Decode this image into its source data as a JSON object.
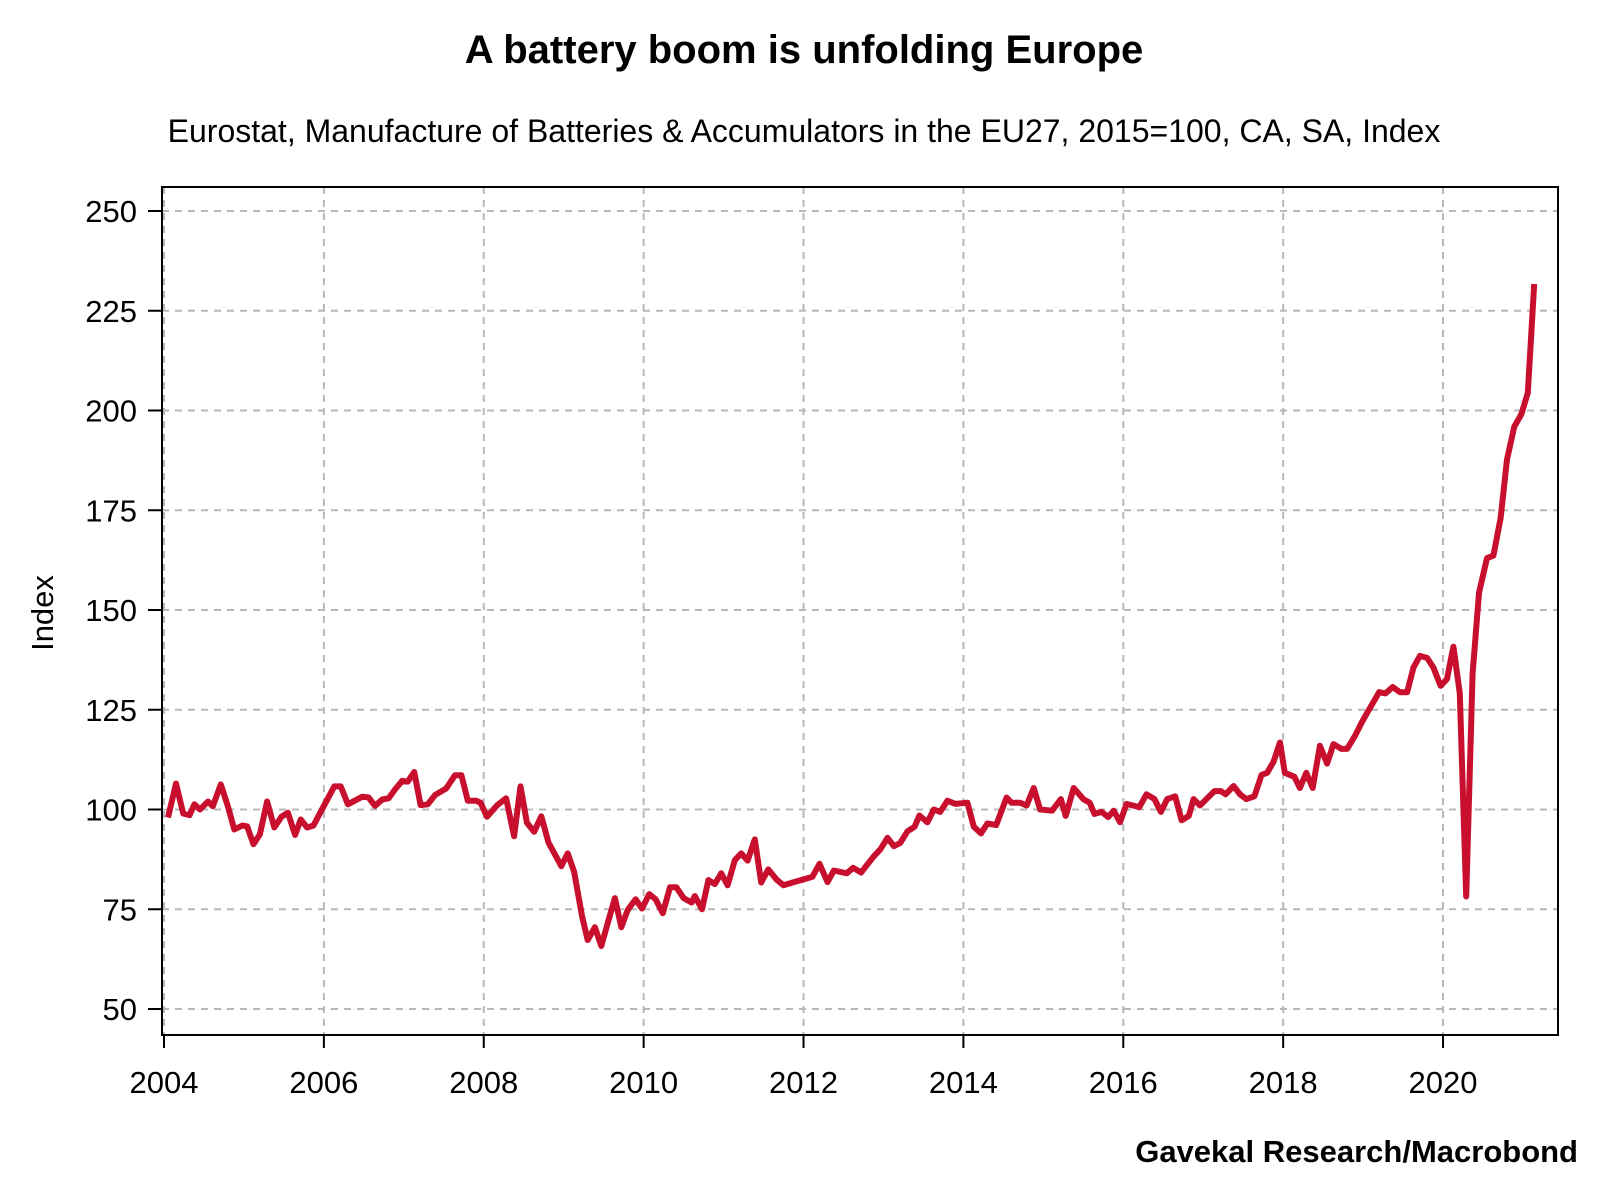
{
  "chart_data": {
    "type": "line",
    "title": "A battery boom is unfolding Europe",
    "subtitle": "Eurostat, Manufacture of Batteries & Accumulators in the EU27, 2015=100, CA, SA, Index",
    "xlabel": "",
    "ylabel": "Index",
    "source": "Gavekal Research/Macrobond",
    "xlim": [
      2004,
      2021.8
    ],
    "ylim": [
      45,
      255
    ],
    "x_ticks": [
      "2004",
      "2006",
      "2008",
      "2010",
      "2012",
      "2014",
      "2016",
      "2018",
      "2020"
    ],
    "y_ticks": [
      "50",
      "75",
      "100",
      "125",
      "150",
      "175",
      "200",
      "225",
      "250"
    ],
    "grid": true,
    "legend": "none",
    "line_color": "#c8102e",
    "series": [
      {
        "x": [
          2004.05,
          2004.15,
          2004.24,
          2004.32,
          2004.38,
          2004.45,
          2004.55,
          2004.61,
          2004.71,
          2004.8,
          2004.88,
          2004.98,
          2005.04,
          2005.12,
          2005.2,
          2005.29,
          2005.38,
          2005.47,
          2005.55,
          2005.64,
          2005.71,
          2005.79,
          2005.87,
          2005.97,
          2006.13,
          2006.21,
          2006.3,
          2006.48,
          2006.56,
          2006.64,
          2006.73,
          2006.81,
          2006.89,
          2006.98,
          2007.05,
          2007.13,
          2007.21,
          2007.3,
          2007.39,
          2007.53,
          2007.64,
          2007.72,
          2007.8,
          2007.9,
          2007.96,
          2008.04,
          2008.17,
          2008.28,
          2008.38,
          2008.46,
          2008.54,
          2008.63,
          2008.72,
          2008.81,
          2008.97,
          2009.05,
          2009.13,
          2009.23,
          2009.3,
          2009.39,
          2009.47,
          2009.55,
          2009.64,
          2009.72,
          2009.8,
          2009.9,
          2009.98,
          2010.07,
          2010.15,
          2010.24,
          2010.33,
          2010.41,
          2010.5,
          2010.6,
          2010.64,
          2010.73,
          2010.81,
          2010.89,
          2010.97,
          2011.05,
          2011.14,
          2011.22,
          2011.3,
          2011.39,
          2011.47,
          2011.56,
          2011.66,
          2011.75,
          2011.88,
          2012.11,
          2012.2,
          2012.3,
          2012.38,
          2012.54,
          2012.62,
          2012.72,
          2012.88,
          2012.96,
          2013.05,
          2013.13,
          2013.21,
          2013.3,
          2013.39,
          2013.45,
          2013.55,
          2013.63,
          2013.71,
          2013.8,
          2013.9,
          2014.05,
          2014.13,
          2014.22,
          2014.3,
          2014.41,
          2014.54,
          2014.6,
          2014.71,
          2014.79,
          2014.88,
          2014.96,
          2015.11,
          2015.22,
          2015.28,
          2015.38,
          2015.5,
          2015.58,
          2015.64,
          2015.73,
          2015.81,
          2015.88,
          2015.96,
          2016.04,
          2016.2,
          2016.29,
          2016.39,
          2016.47,
          2016.55,
          2016.65,
          2016.73,
          2016.82,
          2016.88,
          2016.96,
          2017.14,
          2017.22,
          2017.28,
          2017.38,
          2017.46,
          2017.54,
          2017.64,
          2017.73,
          2017.8,
          2017.88,
          2017.96,
          2018.02,
          2018.14,
          2018.21,
          2018.29,
          2018.37,
          2018.46,
          2018.55,
          2018.63,
          2018.73,
          2018.8,
          2018.9,
          2018.98,
          2019.05,
          2019.12,
          2019.2,
          2019.28,
          2019.37,
          2019.46,
          2019.55,
          2019.63,
          2019.71,
          2019.8,
          2019.88,
          2019.97,
          2020.05,
          2020.13,
          2020.21,
          2020.29,
          2020.37,
          2020.45,
          2020.55,
          2020.63,
          2020.72,
          2020.8,
          2020.89,
          2020.98,
          2021.06,
          2021.14
        ],
        "values": [
          98,
          106.5,
          99,
          98.6,
          101.3,
          100,
          102,
          100.8,
          106.3,
          100.7,
          95,
          96,
          95.8,
          91.3,
          93.8,
          102,
          95.5,
          98.2,
          99.2,
          93.6,
          97.5,
          95.5,
          96,
          99.8,
          105.8,
          105.8,
          101.3,
          103.2,
          103,
          100.9,
          102.5,
          102.8,
          105,
          107.2,
          107,
          109.4,
          101.1,
          101.3,
          103.6,
          105.3,
          108.6,
          108.6,
          102.2,
          102.2,
          101.7,
          98.2,
          101.1,
          102.8,
          93.3,
          105.8,
          96.7,
          94.4,
          98.3,
          91.7,
          85.8,
          89,
          84.4,
          73.2,
          67.3,
          70.5,
          65.8,
          71.5,
          77.8,
          70.5,
          74.8,
          77.5,
          75.2,
          78.8,
          77.5,
          74,
          80.5,
          80.5,
          77.8,
          76.7,
          78.3,
          75,
          82.3,
          81.3,
          84,
          81,
          87.3,
          89,
          87.2,
          92.5,
          81.7,
          85,
          82.5,
          81,
          81.8,
          83.1,
          86.4,
          81.8,
          84.7,
          84,
          85.4,
          84.2,
          88.3,
          90,
          92.9,
          90.8,
          91.6,
          94.5,
          95.7,
          98.5,
          96.8,
          100,
          99.4,
          102.2,
          101.4,
          101.7,
          95.7,
          94,
          96.5,
          96.1,
          103,
          101.7,
          101.7,
          101,
          105.4,
          100,
          99.7,
          102.6,
          98.4,
          105.4,
          102.6,
          101.7,
          98.9,
          99.4,
          98.1,
          99.7,
          96.8,
          101.4,
          100.6,
          103.8,
          102.6,
          99.4,
          102.6,
          103.3,
          97.3,
          98.4,
          102.6,
          101,
          104.6,
          104.6,
          103.8,
          105.9,
          103.8,
          102.6,
          103.3,
          108.7,
          109.2,
          112,
          116.8,
          109.2,
          108.2,
          105.4,
          109.2,
          105.4,
          116,
          111.5,
          116.4,
          115.2,
          115.2,
          118.5,
          121.7,
          124.2,
          126.6,
          129.4,
          129.1,
          130.7,
          129.4,
          129.4,
          135.6,
          138.5,
          138,
          135.6,
          131,
          132.7,
          140.8,
          129.1,
          78.2,
          134,
          154.3,
          163,
          163.6,
          173,
          187.7,
          195.9,
          199.1,
          204.4,
          231.7
        ]
      }
    ]
  }
}
